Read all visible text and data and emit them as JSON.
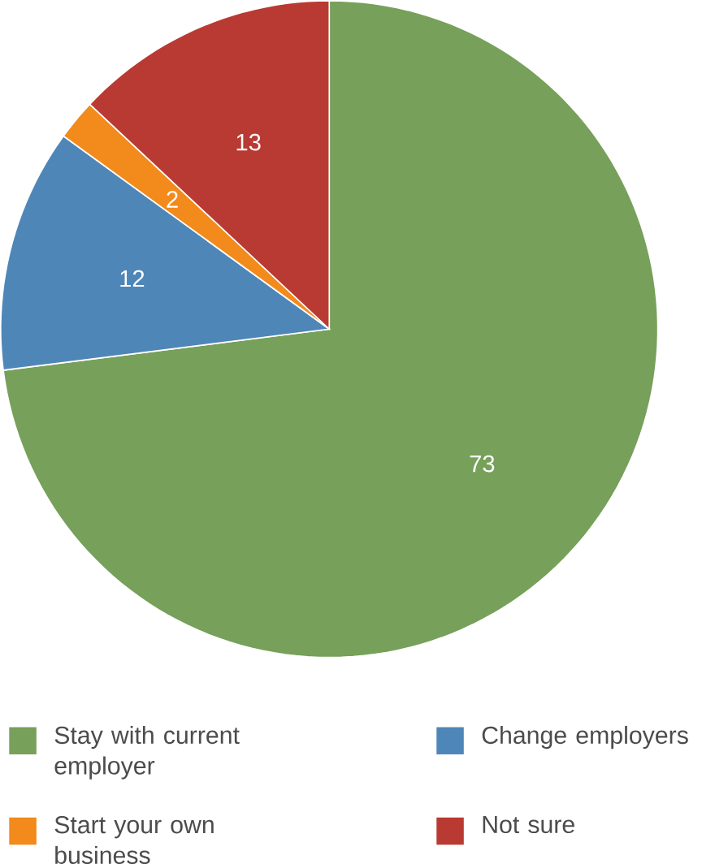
{
  "chart_data": {
    "type": "pie",
    "categories": [
      "Stay with current employer",
      "Change employers",
      "Start your own business",
      "Not sure"
    ],
    "values": [
      73,
      12,
      2,
      13
    ],
    "colors": [
      "#77a05a",
      "#4f86b8",
      "#f28a1c",
      "#b93a32"
    ],
    "data_labels": true,
    "legend": "bottom"
  }
}
